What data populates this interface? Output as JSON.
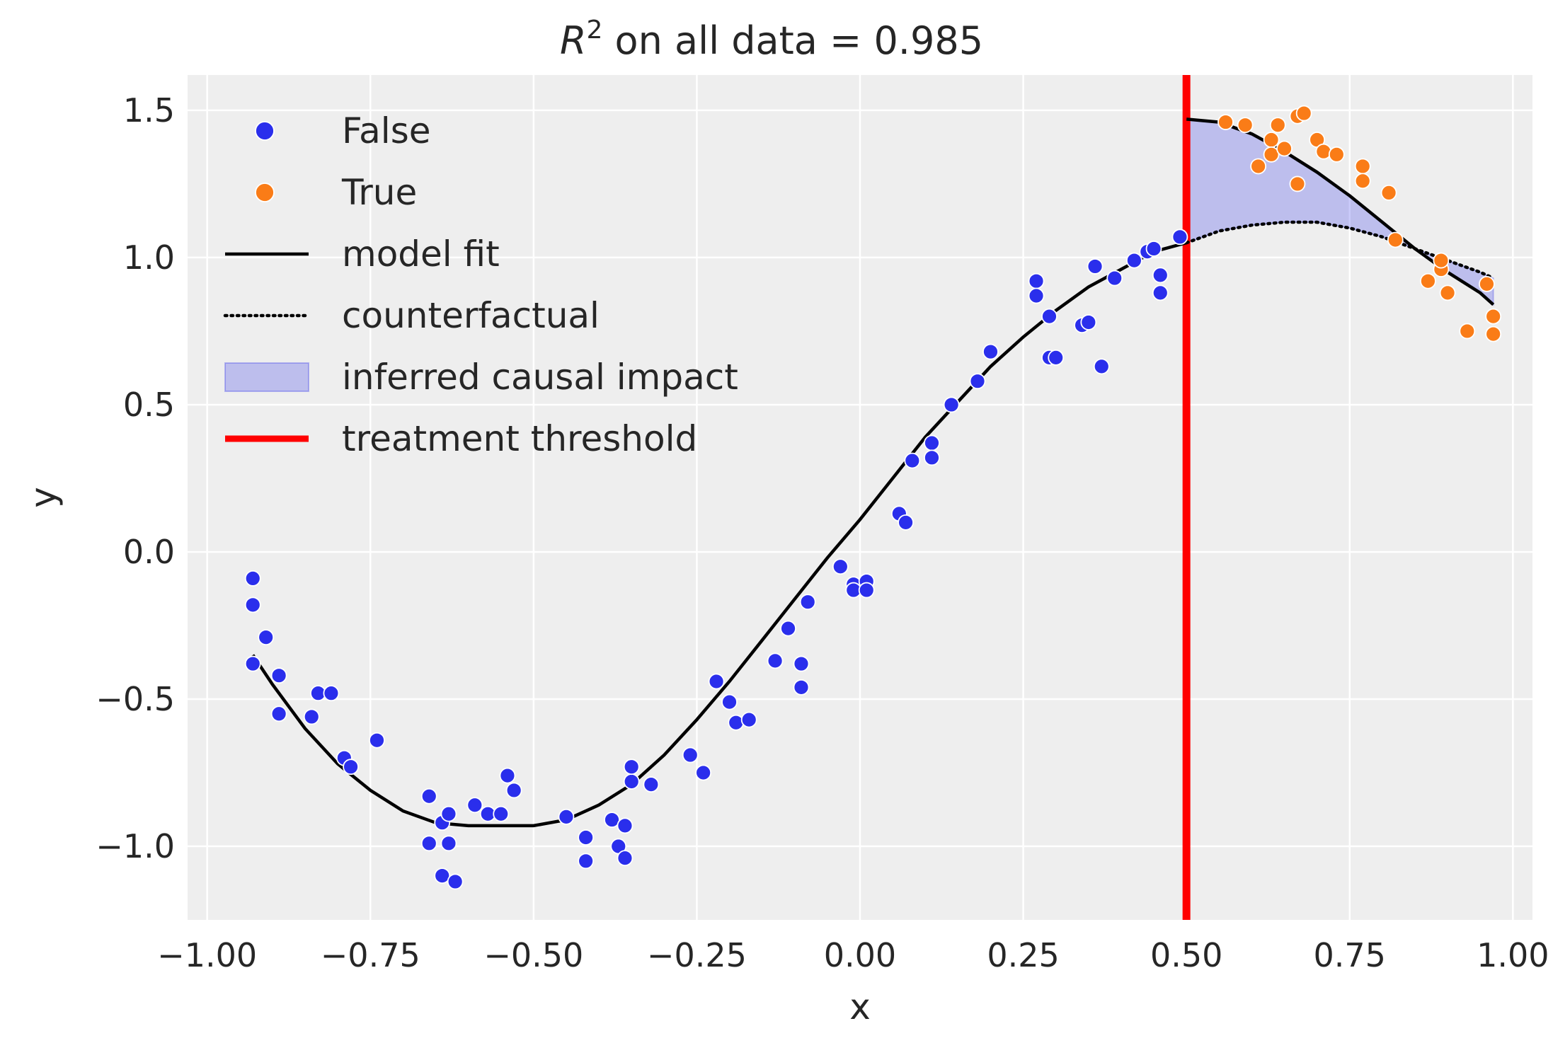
{
  "chart_data": {
    "type": "scatter",
    "title_main": "R",
    "title_sup": "2",
    "title_rest": " on all data = 0.985",
    "xlabel": "x",
    "ylabel": "y",
    "xlim": [
      -1.03,
      1.03
    ],
    "ylim": [
      -1.25,
      1.62
    ],
    "xticks": [
      -1.0,
      -0.75,
      -0.5,
      -0.25,
      0.0,
      0.25,
      0.5,
      0.75,
      1.0
    ],
    "xtick_labels": [
      "−1.00",
      "−0.75",
      "−0.50",
      "−0.25",
      "0.00",
      "0.25",
      "0.50",
      "0.75",
      "1.00"
    ],
    "yticks": [
      -1.0,
      -0.5,
      0.0,
      0.5,
      1.0,
      1.5
    ],
    "ytick_labels": [
      "−1.0",
      "−0.5",
      "0.0",
      "0.5",
      "1.0",
      "1.5"
    ],
    "grid": true,
    "legend_position": "top-left",
    "threshold": 0.5,
    "colors": {
      "false_points": "#2a2eec",
      "true_points": "#fa7c17",
      "model_fit": "#000000",
      "counterfactual": "#000000",
      "impact_fill": "#2a2eec",
      "threshold": "#ff0000",
      "background": "#eeeeee"
    },
    "legend": [
      {
        "label": "False",
        "kind": "false-marker"
      },
      {
        "label": "True",
        "kind": "true-marker"
      },
      {
        "label": "model fit",
        "kind": "solid-line"
      },
      {
        "label": "counterfactual",
        "kind": "dotted-line"
      },
      {
        "label": "inferred causal impact",
        "kind": "patch"
      },
      {
        "label": "treatment threshold",
        "kind": "red-line"
      }
    ],
    "series": [
      {
        "name": "False",
        "points": [
          [
            -0.93,
            -0.09
          ],
          [
            -0.93,
            -0.18
          ],
          [
            -0.93,
            -0.38
          ],
          [
            -0.91,
            -0.29
          ],
          [
            -0.89,
            -0.42
          ],
          [
            -0.89,
            -0.55
          ],
          [
            -0.84,
            -0.56
          ],
          [
            -0.83,
            -0.48
          ],
          [
            -0.81,
            -0.48
          ],
          [
            -0.79,
            -0.7
          ],
          [
            -0.78,
            -0.73
          ],
          [
            -0.74,
            -0.64
          ],
          [
            -0.66,
            -0.83
          ],
          [
            -0.66,
            -0.99
          ],
          [
            -0.64,
            -0.92
          ],
          [
            -0.64,
            -1.1
          ],
          [
            -0.63,
            -0.89
          ],
          [
            -0.63,
            -0.99
          ],
          [
            -0.62,
            -1.12
          ],
          [
            -0.59,
            -0.86
          ],
          [
            -0.57,
            -0.89
          ],
          [
            -0.55,
            -0.89
          ],
          [
            -0.54,
            -0.76
          ],
          [
            -0.53,
            -0.81
          ],
          [
            -0.45,
            -0.9
          ],
          [
            -0.42,
            -0.97
          ],
          [
            -0.42,
            -1.05
          ],
          [
            -0.38,
            -0.91
          ],
          [
            -0.37,
            -1.0
          ],
          [
            -0.36,
            -0.93
          ],
          [
            -0.36,
            -1.04
          ],
          [
            -0.35,
            -0.78
          ],
          [
            -0.35,
            -0.73
          ],
          [
            -0.32,
            -0.79
          ],
          [
            -0.26,
            -0.69
          ],
          [
            -0.24,
            -0.75
          ],
          [
            -0.22,
            -0.44
          ],
          [
            -0.2,
            -0.51
          ],
          [
            -0.19,
            -0.58
          ],
          [
            -0.17,
            -0.57
          ],
          [
            -0.13,
            -0.37
          ],
          [
            -0.11,
            -0.26
          ],
          [
            -0.09,
            -0.38
          ],
          [
            -0.09,
            -0.46
          ],
          [
            -0.08,
            -0.17
          ],
          [
            -0.03,
            -0.05
          ],
          [
            -0.01,
            -0.11
          ],
          [
            -0.01,
            -0.13
          ],
          [
            0.01,
            -0.1
          ],
          [
            0.01,
            -0.13
          ],
          [
            0.06,
            0.13
          ],
          [
            0.07,
            0.1
          ],
          [
            0.08,
            0.31
          ],
          [
            0.11,
            0.37
          ],
          [
            0.11,
            0.32
          ],
          [
            0.14,
            0.5
          ],
          [
            0.18,
            0.58
          ],
          [
            0.2,
            0.68
          ],
          [
            0.27,
            0.92
          ],
          [
            0.27,
            0.87
          ],
          [
            0.29,
            0.66
          ],
          [
            0.29,
            0.8
          ],
          [
            0.3,
            0.66
          ],
          [
            0.34,
            0.77
          ],
          [
            0.35,
            0.78
          ],
          [
            0.36,
            0.97
          ],
          [
            0.37,
            0.63
          ],
          [
            0.39,
            0.93
          ],
          [
            0.42,
            0.99
          ],
          [
            0.44,
            1.02
          ],
          [
            0.45,
            1.03
          ],
          [
            0.46,
            0.94
          ],
          [
            0.46,
            0.88
          ],
          [
            0.49,
            1.07
          ]
        ]
      },
      {
        "name": "True",
        "points": [
          [
            0.56,
            1.46
          ],
          [
            0.59,
            1.45
          ],
          [
            0.61,
            1.31
          ],
          [
            0.63,
            1.4
          ],
          [
            0.63,
            1.35
          ],
          [
            0.64,
            1.45
          ],
          [
            0.65,
            1.37
          ],
          [
            0.67,
            1.48
          ],
          [
            0.67,
            1.25
          ],
          [
            0.68,
            1.49
          ],
          [
            0.7,
            1.4
          ],
          [
            0.71,
            1.36
          ],
          [
            0.73,
            1.35
          ],
          [
            0.77,
            1.31
          ],
          [
            0.77,
            1.26
          ],
          [
            0.81,
            1.22
          ],
          [
            0.82,
            1.06
          ],
          [
            0.87,
            0.92
          ],
          [
            0.89,
            0.96
          ],
          [
            0.89,
            0.99
          ],
          [
            0.9,
            0.88
          ],
          [
            0.93,
            0.75
          ],
          [
            0.96,
            0.91
          ],
          [
            0.97,
            0.8
          ],
          [
            0.97,
            0.74
          ]
        ]
      }
    ],
    "model_fit": {
      "name": "model fit",
      "x": [
        -0.93,
        -0.9,
        -0.85,
        -0.8,
        -0.75,
        -0.7,
        -0.65,
        -0.6,
        -0.55,
        -0.5,
        -0.45,
        -0.4,
        -0.35,
        -0.3,
        -0.25,
        -0.2,
        -0.15,
        -0.1,
        -0.05,
        0.0,
        0.05,
        0.1,
        0.15,
        0.2,
        0.25,
        0.3,
        0.35,
        0.4,
        0.45,
        0.5,
        0.5,
        0.55,
        0.6,
        0.65,
        0.7,
        0.75,
        0.8,
        0.85,
        0.9,
        0.95,
        0.97
      ],
      "y": [
        -0.35,
        -0.45,
        -0.6,
        -0.72,
        -0.81,
        -0.88,
        -0.92,
        -0.93,
        -0.93,
        -0.93,
        -0.91,
        -0.86,
        -0.79,
        -0.69,
        -0.57,
        -0.44,
        -0.3,
        -0.16,
        -0.02,
        0.11,
        0.25,
        0.39,
        0.51,
        0.63,
        0.73,
        0.82,
        0.9,
        0.96,
        1.02,
        1.05,
        1.47,
        1.46,
        1.42,
        1.36,
        1.29,
        1.21,
        1.12,
        1.03,
        0.95,
        0.88,
        0.84
      ]
    },
    "counterfactual": {
      "name": "counterfactual",
      "x": [
        0.5,
        0.55,
        0.6,
        0.65,
        0.7,
        0.75,
        0.8,
        0.85,
        0.9,
        0.95,
        0.97
      ],
      "y": [
        1.05,
        1.09,
        1.11,
        1.12,
        1.12,
        1.1,
        1.07,
        1.03,
        0.99,
        0.95,
        0.93
      ]
    },
    "impact": {
      "name": "inferred causal impact",
      "x_range": [
        0.5,
        0.97
      ]
    }
  }
}
